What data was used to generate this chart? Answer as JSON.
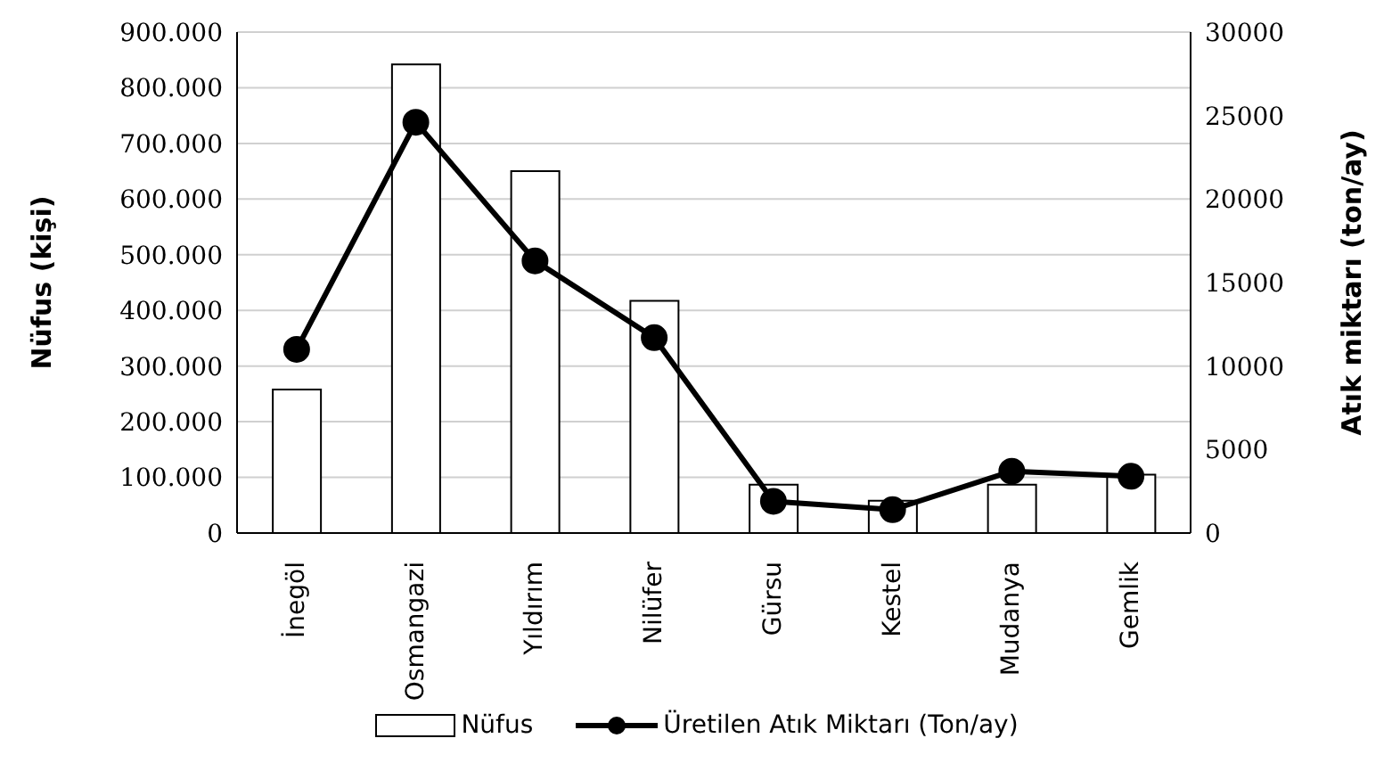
{
  "chart_data": {
    "type": "bar",
    "ylabel": "Nüfus (kişi)",
    "y2label": "Atık miktarı (ton/ay)",
    "categories": [
      "İnegöl",
      "Osmangazi",
      "Yıldırım",
      "Nilüfer",
      "Gürsu",
      "Kestel",
      "Mudanya",
      "Gemlik"
    ],
    "series": [
      {
        "name": "Nüfus",
        "color": "#ffffff",
        "values": [
          258000,
          842000,
          650000,
          417000,
          87000,
          58000,
          87000,
          105000
        ]
      },
      {
        "name": "Üretilen Atık Miktarı (Ton/ay)",
        "type": "line",
        "axis": "y2",
        "color": "#000000",
        "marker": "circle",
        "values": [
          11000,
          24600,
          16300,
          11700,
          1900,
          1400,
          3700,
          3400
        ]
      }
    ],
    "ylim": [
      0,
      900000
    ],
    "yticks": [
      {
        "value": 0,
        "label": "0"
      },
      {
        "value": 100000,
        "label": "100.000"
      },
      {
        "value": 200000,
        "label": "200.000"
      },
      {
        "value": 300000,
        "label": "300.000"
      },
      {
        "value": 400000,
        "label": "400.000"
      },
      {
        "value": 500000,
        "label": "500.000"
      },
      {
        "value": 600000,
        "label": "600.000"
      },
      {
        "value": 700000,
        "label": "700.000"
      },
      {
        "value": 800000,
        "label": "800.000"
      },
      {
        "value": 900000,
        "label": "900.000"
      }
    ],
    "y2lim": [
      0,
      30000
    ],
    "y2ticks": [
      0,
      5000,
      10000,
      15000,
      20000,
      25000,
      30000
    ],
    "grid": "y",
    "legend": "bottom"
  }
}
